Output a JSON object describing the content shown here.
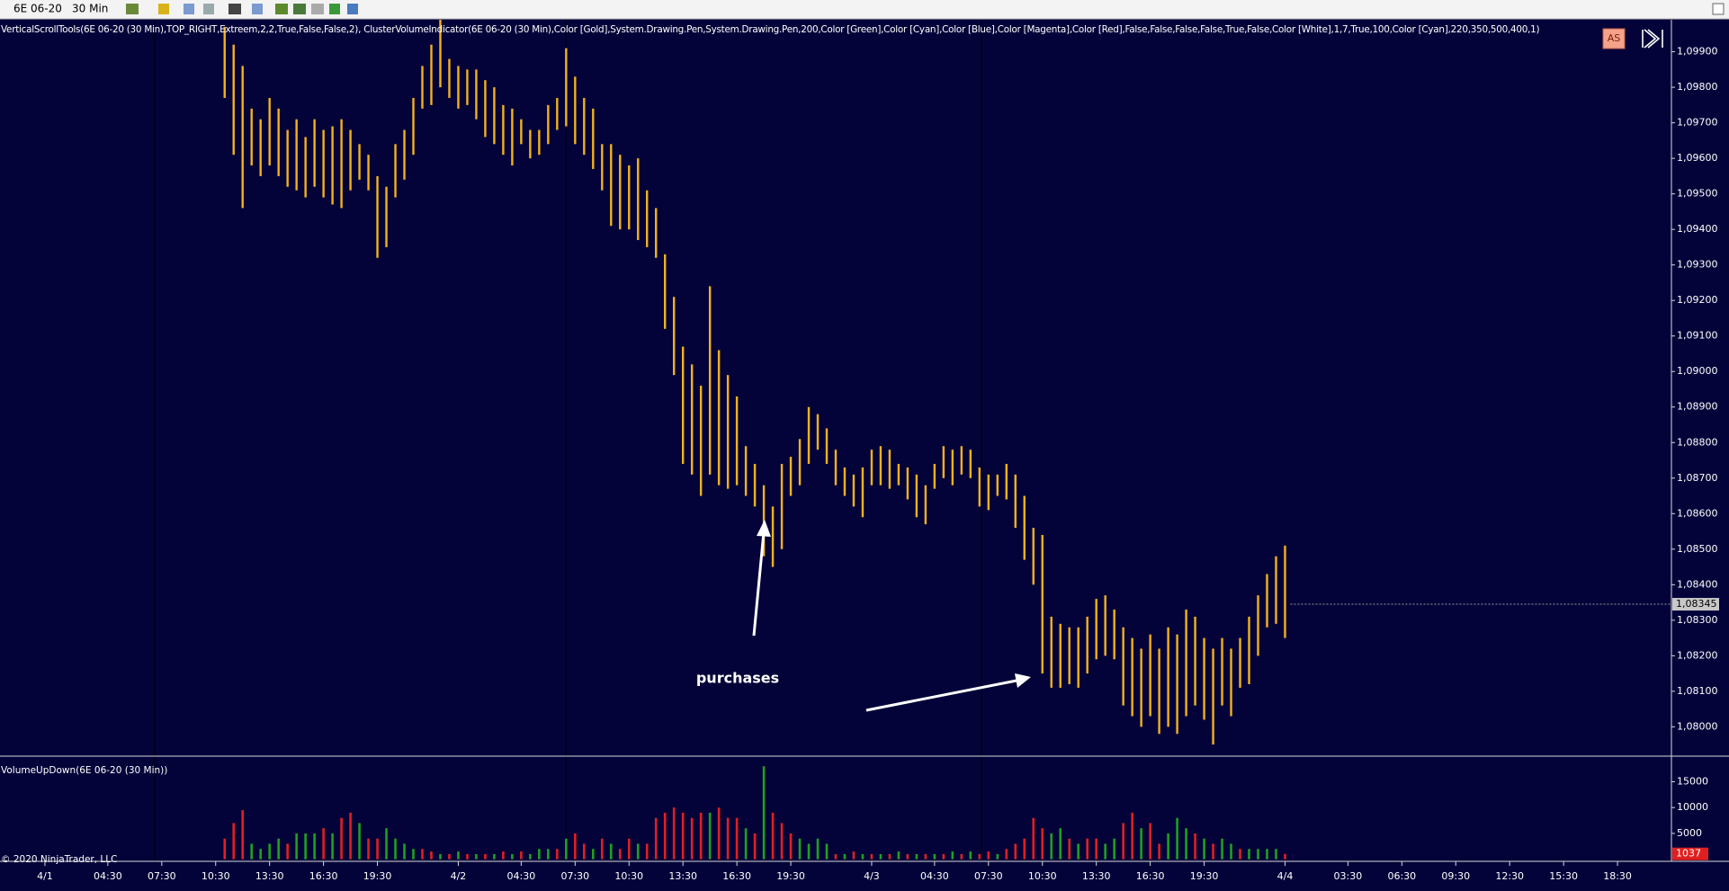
{
  "toolbar": {
    "instrument": "6E 06-20",
    "interval": "30 Min"
  },
  "indicator_label": "VerticalScrollTools(6E 06-20 (30 Min),TOP_RIGHT,Extreem,2,2,True,False,False,2), ClusterVolumeIndicator(6E 06-20 (30 Min),Color [Gold],System.Drawing.Pen,System.Drawing.Pen,200,Color [Green],Color [Cyan],Color [Blue],Color [Magenta],Color [Red],False,False,False,False,True,False,Color [White],1,7,True,100,Color [Cyan],220,350,500,400,1)",
  "button": "AS",
  "copyright": "© 2020 NinjaTrader, LLC",
  "chart_data": [
    {
      "type": "range-bar",
      "color": "#f2b21c",
      "annotation": "purchases",
      "last_price": {
        "value": 1.08345,
        "label": "1,08345"
      },
      "xlim": [
        -5,
        181
      ],
      "ylim": [
        1.0792,
        1.0999
      ],
      "yticks": [
        {
          "value": 1.08,
          "label": "1,08000"
        },
        {
          "value": 1.081,
          "label": "1,08100"
        },
        {
          "value": 1.082,
          "label": "1,08200"
        },
        {
          "value": 1.083,
          "label": "1,08300"
        },
        {
          "value": 1.084,
          "label": "1,08400"
        },
        {
          "value": 1.085,
          "label": "1,08500"
        },
        {
          "value": 1.086,
          "label": "1,08600"
        },
        {
          "value": 1.087,
          "label": "1,08700"
        },
        {
          "value": 1.088,
          "label": "1,08800"
        },
        {
          "value": 1.089,
          "label": "1,08900"
        },
        {
          "value": 1.09,
          "label": "1,09000"
        },
        {
          "value": 1.091,
          "label": "1,09100"
        },
        {
          "value": 1.092,
          "label": "1,09200"
        },
        {
          "value": 1.093,
          "label": "1,09300"
        },
        {
          "value": 1.094,
          "label": "1,09400"
        },
        {
          "value": 1.095,
          "label": "1,09500"
        },
        {
          "value": 1.096,
          "label": "1,09600"
        },
        {
          "value": 1.097,
          "label": "1,09700"
        },
        {
          "value": 1.098,
          "label": "1,09800"
        },
        {
          "value": 1.099,
          "label": "1,09900"
        }
      ],
      "xticks": [
        {
          "value": 0,
          "label": "4/1"
        },
        {
          "value": 7,
          "label": "04:30"
        },
        {
          "value": 13,
          "label": "07:30"
        },
        {
          "value": 19,
          "label": "10:30"
        },
        {
          "value": 25,
          "label": "13:30"
        },
        {
          "value": 31,
          "label": "16:30"
        },
        {
          "value": 37,
          "label": "19:30"
        },
        {
          "value": 46,
          "label": "4/2"
        },
        {
          "value": 53,
          "label": "04:30"
        },
        {
          "value": 59,
          "label": "07:30"
        },
        {
          "value": 65,
          "label": "10:30"
        },
        {
          "value": 71,
          "label": "13:30"
        },
        {
          "value": 77,
          "label": "16:30"
        },
        {
          "value": 83,
          "label": "19:30"
        },
        {
          "value": 92,
          "label": "4/3"
        },
        {
          "value": 99,
          "label": "04:30"
        },
        {
          "value": 105,
          "label": "07:30"
        },
        {
          "value": 111,
          "label": "10:30"
        },
        {
          "value": 117,
          "label": "13:30"
        },
        {
          "value": 123,
          "label": "16:30"
        },
        {
          "value": 129,
          "label": "19:30"
        },
        {
          "value": 138,
          "label": "4/4"
        },
        {
          "value": 145,
          "label": "03:30"
        },
        {
          "value": 151,
          "label": "06:30"
        },
        {
          "value": 157,
          "label": "09:30"
        },
        {
          "value": 163,
          "label": "12:30"
        },
        {
          "value": 169,
          "label": "15:30"
        },
        {
          "value": 175,
          "label": "18:30"
        }
      ],
      "x": [
        20,
        21,
        22,
        23,
        24,
        25,
        26,
        27,
        28,
        29,
        30,
        31,
        32,
        33,
        34,
        35,
        36,
        37,
        38,
        39,
        40,
        41,
        42,
        43,
        44,
        45,
        46,
        47,
        48,
        49,
        50,
        51,
        52,
        53,
        54,
        55,
        56,
        57,
        58,
        59,
        60,
        61,
        62,
        63,
        64,
        65,
        66,
        67,
        68,
        69,
        70,
        71,
        72,
        73,
        74,
        75,
        76,
        77,
        78,
        79,
        80,
        81,
        82,
        83,
        84,
        85,
        86,
        87,
        88,
        89,
        90,
        91,
        92,
        93,
        94,
        95,
        96,
        97,
        98,
        99,
        100,
        101,
        102,
        103,
        104,
        105,
        106,
        107,
        108,
        109,
        110,
        111,
        112,
        113,
        114,
        115,
        116,
        117,
        118,
        119,
        120,
        121,
        122,
        123,
        124,
        125,
        126,
        127,
        128,
        129,
        130,
        131,
        132,
        133,
        134,
        135,
        136,
        137,
        138
      ],
      "high": [
        1.0997,
        1.0992,
        1.0986,
        1.0974,
        1.0971,
        1.0977,
        1.0974,
        1.0968,
        1.0971,
        1.0966,
        1.0971,
        1.0968,
        1.0969,
        1.0971,
        1.0968,
        1.0964,
        1.0961,
        1.0955,
        1.0952,
        1.0964,
        1.0968,
        1.0977,
        1.0986,
        1.0992,
        1.0999,
        1.0988,
        1.0986,
        1.0985,
        1.0985,
        1.0982,
        1.098,
        1.0975,
        1.0974,
        1.0971,
        1.0968,
        1.0968,
        1.0975,
        1.0977,
        1.0991,
        1.0983,
        1.0977,
        1.0974,
        1.0964,
        1.0964,
        1.0961,
        1.0958,
        1.096,
        1.0951,
        1.0946,
        1.0933,
        1.0921,
        1.0907,
        1.0902,
        1.0896,
        1.0924,
        1.0906,
        1.0899,
        1.0893,
        1.0879,
        1.0874,
        1.0868,
        1.0862,
        1.0874,
        1.0876,
        1.0881,
        1.089,
        1.0888,
        1.0884,
        1.0878,
        1.0873,
        1.0871,
        1.0873,
        1.0878,
        1.0879,
        1.0878,
        1.0874,
        1.0873,
        1.0871,
        1.0868,
        1.0874,
        1.0879,
        1.0878,
        1.0879,
        1.0878,
        1.0873,
        1.0871,
        1.0871,
        1.0874,
        1.0871,
        1.0865,
        1.0856,
        1.0854,
        1.0831,
        1.0829,
        1.0828,
        1.0828,
        1.0831,
        1.0836,
        1.0837,
        1.0833,
        1.0828,
        1.0825,
        1.0822,
        1.0826,
        1.0822,
        1.0828,
        1.0826,
        1.0833,
        1.0831,
        1.0825,
        1.0822,
        1.0825,
        1.0822,
        1.0825,
        1.0831,
        1.0837,
        1.0843,
        1.0848,
        1.0851
      ],
      "low": [
        1.0977,
        1.0961,
        1.0946,
        1.0958,
        1.0955,
        1.0958,
        1.0955,
        1.0952,
        1.0951,
        1.0949,
        1.0952,
        1.0949,
        1.0947,
        1.0946,
        1.0951,
        1.0954,
        1.0951,
        1.0932,
        1.0935,
        1.0949,
        1.0954,
        1.0961,
        1.0974,
        1.0975,
        1.098,
        1.0977,
        1.0974,
        1.0975,
        1.0971,
        1.0966,
        1.0964,
        1.0961,
        1.0958,
        1.0964,
        1.096,
        1.0961,
        1.0964,
        1.0968,
        1.0969,
        1.0964,
        1.0961,
        1.0957,
        1.0951,
        1.0941,
        1.094,
        1.094,
        1.0937,
        1.0935,
        1.0932,
        1.0912,
        1.0899,
        1.0874,
        1.0871,
        1.0865,
        1.0871,
        1.0868,
        1.0867,
        1.0868,
        1.0865,
        1.0862,
        1.0848,
        1.0845,
        1.085,
        1.0865,
        1.0868,
        1.0874,
        1.0878,
        1.0874,
        1.0868,
        1.0865,
        1.0862,
        1.0859,
        1.0868,
        1.0868,
        1.0867,
        1.0868,
        1.0864,
        1.0859,
        1.0857,
        1.0867,
        1.087,
        1.0868,
        1.0871,
        1.087,
        1.0862,
        1.0861,
        1.0865,
        1.0864,
        1.0856,
        1.0847,
        1.084,
        1.0815,
        1.0811,
        1.0811,
        1.0812,
        1.0811,
        1.0815,
        1.0819,
        1.082,
        1.0819,
        1.0806,
        1.0803,
        1.08,
        1.0803,
        1.0798,
        1.08,
        1.0798,
        1.0803,
        1.0806,
        1.0802,
        1.0795,
        1.0806,
        1.0803,
        1.0811,
        1.0812,
        1.082,
        1.0828,
        1.0829,
        1.0825
      ]
    },
    {
      "type": "bar",
      "title": "VolumeUpDown(6E 06-20 (30 Min))",
      "xlim": [
        -5,
        181
      ],
      "ylim": [
        -400,
        19600
      ],
      "yticks": [
        5000,
        10000,
        15000
      ],
      "x": [
        20,
        21,
        22,
        23,
        24,
        25,
        26,
        27,
        28,
        29,
        30,
        31,
        32,
        33,
        34,
        35,
        36,
        37,
        38,
        39,
        40,
        41,
        42,
        43,
        44,
        45,
        46,
        47,
        48,
        49,
        50,
        51,
        52,
        53,
        54,
        55,
        56,
        57,
        58,
        59,
        60,
        61,
        62,
        63,
        64,
        65,
        66,
        67,
        68,
        69,
        70,
        71,
        72,
        73,
        74,
        75,
        76,
        77,
        78,
        79,
        80,
        81,
        82,
        83,
        84,
        85,
        86,
        87,
        88,
        89,
        90,
        91,
        92,
        93,
        94,
        95,
        96,
        97,
        98,
        99,
        100,
        101,
        102,
        103,
        104,
        105,
        106,
        107,
        108,
        109,
        110,
        111,
        112,
        113,
        114,
        115,
        116,
        117,
        118,
        119,
        120,
        121,
        122,
        123,
        124,
        125,
        126,
        127,
        128,
        129,
        130,
        131,
        132,
        133,
        134,
        135,
        136,
        137,
        138
      ],
      "values": [
        4000,
        7000,
        9500,
        3000,
        2000,
        3000,
        4000,
        3000,
        5000,
        5000,
        5000,
        6000,
        5000,
        8000,
        9000,
        7000,
        4000,
        4000,
        6000,
        4000,
        3000,
        2000,
        2000,
        1500,
        1000,
        1000,
        1500,
        1000,
        1000,
        1000,
        1000,
        1500,
        1000,
        1500,
        1000,
        2000,
        2000,
        2000,
        4000,
        5000,
        3000,
        2000,
        4000,
        3000,
        2000,
        4000,
        3000,
        3000,
        8000,
        9000,
        10000,
        9000,
        8000,
        9000,
        9000,
        10000,
        8000,
        8000,
        6000,
        5000,
        18000,
        9000,
        7000,
        5000,
        4000,
        3000,
        4000,
        3000,
        1000,
        1000,
        1500,
        1000,
        1000,
        1000,
        1000,
        1500,
        1000,
        1000,
        1000,
        1000,
        1000,
        1500,
        1000,
        1500,
        1000,
        1500,
        1000,
        2000,
        3000,
        4000,
        8000,
        6000,
        5000,
        6000,
        4000,
        3000,
        4000,
        4000,
        3000,
        4000,
        7000,
        9000,
        6000,
        7000,
        3000,
        5000,
        8000,
        6000,
        5000,
        4000,
        3000,
        4000,
        3000,
        2000,
        2000,
        2000,
        2000,
        2000,
        1037
      ],
      "colors": [
        "#e02020",
        "#e02020",
        "#e02020",
        "#1fa01f",
        "#1fa01f",
        "#1fa01f",
        "#1fa01f",
        "#e02020",
        "#1fa01f",
        "#1fa01f",
        "#1fa01f",
        "#e02020",
        "#1fa01f",
        "#e02020",
        "#e02020",
        "#1fa01f",
        "#e02020",
        "#e02020",
        "#1fa01f",
        "#1fa01f",
        "#1fa01f",
        "#1fa01f",
        "#e02020",
        "#e02020",
        "#1fa01f",
        "#e02020",
        "#1fa01f",
        "#e02020",
        "#1fa01f",
        "#e02020",
        "#1fa01f",
        "#e02020",
        "#1fa01f",
        "#e02020",
        "#1fa01f",
        "#1fa01f",
        "#1fa01f",
        "#e02020",
        "#1fa01f",
        "#e02020",
        "#e02020",
        "#1fa01f",
        "#e02020",
        "#1fa01f",
        "#e02020",
        "#e02020",
        "#1fa01f",
        "#e02020",
        "#e02020",
        "#e02020",
        "#e02020",
        "#e02020",
        "#e02020",
        "#e02020",
        "#1fa01f",
        "#e02020",
        "#e02020",
        "#e02020",
        "#1fa01f",
        "#e02020",
        "#1fa01f",
        "#e02020",
        "#e02020",
        "#e02020",
        "#1fa01f",
        "#1fa01f",
        "#1fa01f",
        "#1fa01f",
        "#e02020",
        "#1fa01f",
        "#e02020",
        "#1fa01f",
        "#e02020",
        "#1fa01f",
        "#e02020",
        "#1fa01f",
        "#e02020",
        "#1fa01f",
        "#e02020",
        "#1fa01f",
        "#e02020",
        "#1fa01f",
        "#e02020",
        "#1fa01f",
        "#e02020",
        "#e02020",
        "#1fa01f",
        "#e02020",
        "#e02020",
        "#e02020",
        "#e02020",
        "#e02020",
        "#1fa01f",
        "#1fa01f",
        "#e02020",
        "#1fa01f",
        "#e02020",
        "#e02020",
        "#1fa01f",
        "#1fa01f",
        "#e02020",
        "#e02020",
        "#1fa01f",
        "#e02020",
        "#e02020",
        "#1fa01f",
        "#1fa01f",
        "#1fa01f",
        "#e02020",
        "#1fa01f",
        "#e02020",
        "#1fa01f",
        "#1fa01f",
        "#e02020",
        "#1fa01f",
        "#1fa01f",
        "#1fa01f",
        "#1fa01f",
        "#e02020"
      ],
      "last_value": 1037
    }
  ]
}
